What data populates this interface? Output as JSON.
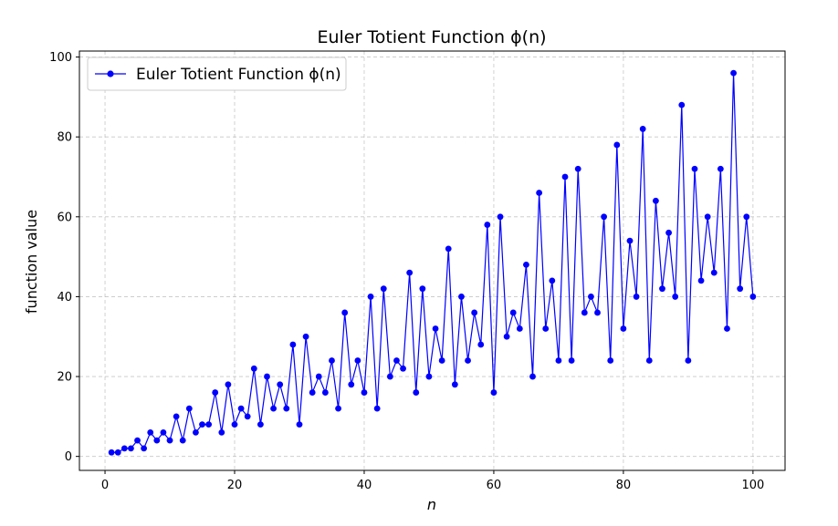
{
  "chart_data": {
    "type": "line",
    "title": "Euler Totient Function ϕ(n)",
    "xlabel": "n",
    "ylabel": "function value",
    "xlim": [
      -3.95,
      104.95
    ],
    "ylim": [
      -3.5,
      101.5
    ],
    "xticks": [
      0,
      20,
      40,
      60,
      80,
      100
    ],
    "yticks": [
      0,
      20,
      40,
      60,
      80,
      100
    ],
    "grid": true,
    "legend_position": "top-left",
    "series": [
      {
        "name": "Euler Totient Function ϕ(n)",
        "color": "#0000ff",
        "marker": "circle",
        "x": [
          1,
          2,
          3,
          4,
          5,
          6,
          7,
          8,
          9,
          10,
          11,
          12,
          13,
          14,
          15,
          16,
          17,
          18,
          19,
          20,
          21,
          22,
          23,
          24,
          25,
          26,
          27,
          28,
          29,
          30,
          31,
          32,
          33,
          34,
          35,
          36,
          37,
          38,
          39,
          40,
          41,
          42,
          43,
          44,
          45,
          46,
          47,
          48,
          49,
          50,
          51,
          52,
          53,
          54,
          55,
          56,
          57,
          58,
          59,
          60,
          61,
          62,
          63,
          64,
          65,
          66,
          67,
          68,
          69,
          70,
          71,
          72,
          73,
          74,
          75,
          76,
          77,
          78,
          79,
          80,
          81,
          82,
          83,
          84,
          85,
          86,
          87,
          88,
          89,
          90,
          91,
          92,
          93,
          94,
          95,
          96,
          97,
          98,
          99,
          100
        ],
        "values": [
          1,
          1,
          2,
          2,
          4,
          2,
          6,
          4,
          6,
          4,
          10,
          4,
          12,
          6,
          8,
          8,
          16,
          6,
          18,
          8,
          12,
          10,
          22,
          8,
          20,
          12,
          18,
          12,
          28,
          8,
          30,
          16,
          20,
          16,
          24,
          12,
          36,
          18,
          24,
          16,
          40,
          12,
          42,
          20,
          24,
          22,
          46,
          16,
          42,
          20,
          32,
          24,
          52,
          18,
          40,
          24,
          36,
          28,
          58,
          16,
          60,
          30,
          36,
          32,
          48,
          20,
          66,
          32,
          44,
          24,
          70,
          24,
          72,
          36,
          40,
          36,
          60,
          24,
          78,
          32,
          54,
          40,
          82,
          24,
          64,
          42,
          56,
          40,
          88,
          24,
          72,
          44,
          60,
          46,
          72,
          32,
          96,
          42,
          60,
          40
        ]
      }
    ]
  }
}
